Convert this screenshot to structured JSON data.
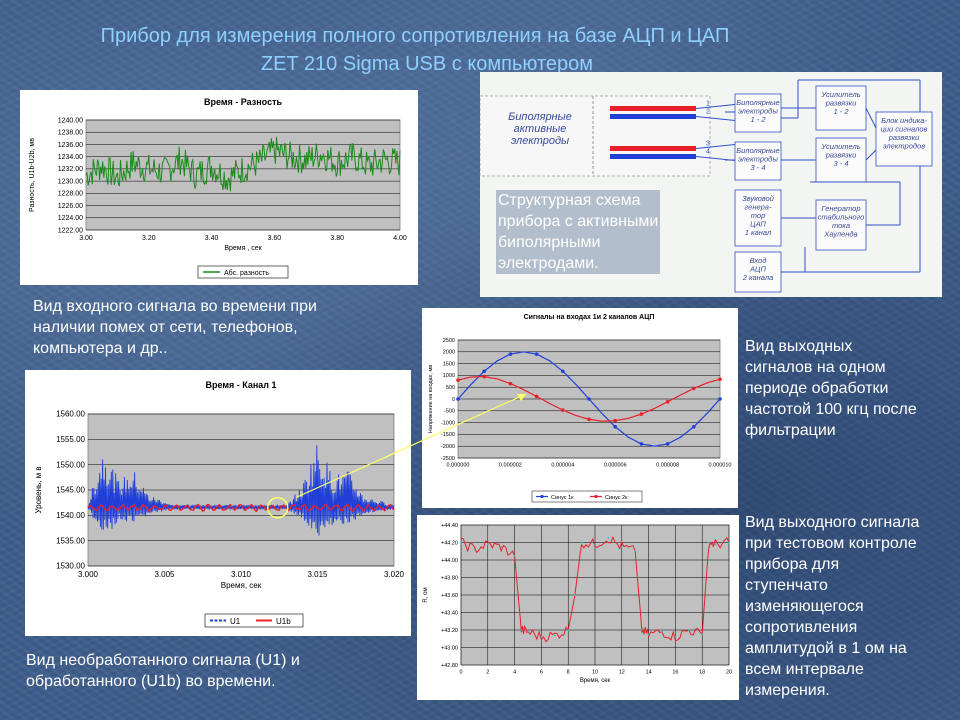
{
  "title": {
    "line1": "Прибор для измерения полного сопротивления на базе   АЦП  и  ЦАП",
    "line2": "ZET  210 Sigma USB с компьютером"
  },
  "captions": {
    "diagram": [
      "Структурная схема",
      "прибора с активными",
      "биполярными",
      "электродами."
    ],
    "input_signal": [
      "Вид входного сигнала во времени при",
      "наличии помех от сети, телефонов,",
      "компьютера и др.."
    ],
    "output_signals": [
      "Вид выходных",
      "сигналов на одном",
      "периоде обработки",
      "частотой 100 кгц после",
      "фильтрации"
    ],
    "raw_signal": [
      "Вид  необработанного сигнала (U1) и",
      "обработанного (U1b) во времени."
    ],
    "step_signal": [
      "Вид выходного сигнала",
      "при тестовом контроле",
      "прибора для",
      "ступенчато",
      "изменяющегося",
      "сопротивления",
      "амплитудой в 1 ом на",
      "всем интервале",
      "измерения."
    ]
  },
  "schema": {
    "electrodes_label": [
      "Биполярные",
      "активные",
      "электроды"
    ],
    "wire_numbers": [
      "1",
      "2",
      "3",
      "4"
    ],
    "blocks": {
      "electr_12": [
        "Биполярные",
        "электроды",
        "1 - 2"
      ],
      "electr_34": [
        "Биполярные",
        "электроды",
        "3 - 4"
      ],
      "amp_12": [
        "Усилитель",
        "развязки",
        "1 - 2"
      ],
      "amp_34": [
        "Усилитель",
        "развязки",
        "3 - 4"
      ],
      "display": [
        "Блок индика-",
        "ции сигналов",
        "развязки",
        "электродов"
      ],
      "dac": [
        "Звуковой",
        "генера-",
        "тор",
        "ЦАП",
        "1 канал"
      ],
      "generator": [
        "Генератор",
        "стабильного",
        "тока",
        "Хауленда"
      ],
      "adc": [
        "Вход",
        "АЦП",
        "2 канала"
      ]
    },
    "colors": {
      "red": "#e8202a",
      "blue": "#1f3fd8",
      "line": "#3050c8"
    }
  },
  "chart_data": [
    {
      "id": "chart-difference",
      "type": "line",
      "title": "Время - Разность",
      "xlabel": "Время , сек",
      "ylabel": "Разность, U1b-U2b, мв",
      "xlim": [
        3.0,
        4.0
      ],
      "ylim": [
        1222.0,
        1240.0
      ],
      "x_ticks": [
        "3.00",
        "3.20",
        "3.40",
        "3.60",
        "3.80",
        "4.00"
      ],
      "y_ticks": [
        "1222.00",
        "1224.00",
        "1226.00",
        "1228.00",
        "1230.00",
        "1232.00",
        "1234.00",
        "1236.00",
        "1238.00",
        "1240.00"
      ],
      "series": [
        {
          "name": "Абс. разность",
          "color": "#1d8a1d",
          "x": [
            3.0,
            3.05,
            3.1,
            3.15,
            3.2,
            3.25,
            3.3,
            3.35,
            3.4,
            3.45,
            3.5,
            3.55,
            3.6,
            3.65,
            3.7,
            3.75,
            3.8,
            3.85,
            3.9,
            3.95,
            4.0
          ],
          "y": [
            1231.0,
            1232.5,
            1230.5,
            1233.0,
            1232.0,
            1231.5,
            1233.5,
            1231.0,
            1232.5,
            1230.5,
            1232.0,
            1233.0,
            1235.0,
            1234.0,
            1233.5,
            1234.5,
            1233.0,
            1234.0,
            1232.5,
            1233.5,
            1233.0
          ]
        }
      ],
      "legend": "bottom",
      "grid": true
    },
    {
      "id": "chart-channels",
      "type": "line",
      "title": "Сигналы на входах 1и 2 каналов АЦП",
      "xlabel": "",
      "ylabel": "Напряжение на входах, мв",
      "xlim": [
        0.0,
        1e-05
      ],
      "ylim": [
        -2500,
        2500
      ],
      "x_ticks": [
        "0.000000",
        "0.000002",
        "0.000004",
        "0.000006",
        "0.000008",
        "0.000010"
      ],
      "y_ticks": [
        "2500",
        "2000",
        "1500",
        "1000",
        "500",
        "0",
        "-500",
        "-1000",
        "-1500",
        "-2000",
        "-2500"
      ],
      "series": [
        {
          "name": "Синус 1к",
          "color": "#1f3fd8",
          "x": [
            0,
            5e-07,
            1e-06,
            1.5e-06,
            2e-06,
            2.5e-06,
            3e-06,
            3.5e-06,
            4e-06,
            4.5e-06,
            5e-06,
            5.5e-06,
            6e-06,
            6.5e-06,
            7e-06,
            7.5e-06,
            8e-06,
            8.5e-06,
            9e-06,
            9.5e-06,
            1e-05
          ],
          "y": [
            0,
            618,
            1176,
            1618,
            1902,
            2000,
            1902,
            1618,
            1176,
            618,
            0,
            -618,
            -1176,
            -1618,
            -1902,
            -2000,
            -1902,
            -1618,
            -1176,
            -618,
            0
          ]
        },
        {
          "name": "Синус 2к",
          "color": "#e8202a",
          "x": [
            0,
            5e-07,
            1e-06,
            1.5e-06,
            2e-06,
            2.5e-06,
            3e-06,
            3.5e-06,
            4e-06,
            4.5e-06,
            5e-06,
            5.5e-06,
            6e-06,
            6.5e-06,
            7e-06,
            7.5e-06,
            8e-06,
            8.5e-06,
            9e-06,
            9.5e-06,
            1e-05
          ],
          "y": [
            800,
            930,
            950,
            850,
            650,
            400,
            110,
            -190,
            -470,
            -700,
            -860,
            -940,
            -920,
            -820,
            -640,
            -400,
            -120,
            170,
            450,
            680,
            840
          ]
        }
      ],
      "legend": "bottom",
      "grid": true
    },
    {
      "id": "chart-channel1",
      "type": "line",
      "title": "Время - Канал 1",
      "xlabel": "Время, сек",
      "ylabel": "Уровень, м в",
      "xlim": [
        3.0,
        3.02
      ],
      "ylim": [
        1530.0,
        1560.0
      ],
      "x_ticks": [
        "3.000",
        "3.005",
        "3.010",
        "3.015",
        "3.020"
      ],
      "y_ticks": [
        "1530.00",
        "1535.00",
        "1540.00",
        "1545.00",
        "1550.00",
        "1555.00",
        "1560.00"
      ],
      "series": [
        {
          "name": "U1",
          "color": "#1f3fd8",
          "x": [
            3.0,
            3.001,
            3.002,
            3.003,
            3.004,
            3.005,
            3.006,
            3.007,
            3.008,
            3.009,
            3.01,
            3.011,
            3.012,
            3.013,
            3.014,
            3.015,
            3.016,
            3.017,
            3.018,
            3.019,
            3.02
          ],
          "y": [
            1542,
            1554,
            1547,
            1549,
            1544,
            1543,
            1541,
            1539,
            1542,
            1541,
            1540,
            1541,
            1542,
            1542,
            1546,
            1555,
            1548,
            1549,
            1544,
            1543,
            1542
          ]
        },
        {
          "name": "U1b",
          "color": "#e8202a",
          "x": [
            3.0,
            3.002,
            3.004,
            3.006,
            3.008,
            3.01,
            3.012,
            3.014,
            3.016,
            3.018,
            3.02
          ],
          "y": [
            1541.5,
            1542,
            1541.5,
            1541,
            1541.5,
            1541,
            1541.5,
            1541.5,
            1542,
            1541.5,
            1542
          ]
        }
      ],
      "legend": "bottom",
      "grid": true
    },
    {
      "id": "chart-step",
      "type": "line",
      "title": "",
      "xlabel": "Время, сек",
      "ylabel": "R, ом",
      "xlim": [
        0,
        20
      ],
      "ylim": [
        42.8,
        44.4
      ],
      "x_ticks": [
        "0",
        "2",
        "4",
        "6",
        "8",
        "10",
        "12",
        "14",
        "16",
        "18",
        "20"
      ],
      "y_ticks": [
        "+42.80",
        "+43.00",
        "+43.20",
        "+43.40",
        "+43.60",
        "+43.80",
        "+44.00",
        "+44.20",
        "+44.40"
      ],
      "series": [
        {
          "name": "R",
          "color": "#e8202a",
          "x": [
            0,
            1,
            2,
            3,
            4,
            4.5,
            5,
            6,
            7,
            8,
            8.5,
            9,
            10,
            11,
            12,
            13,
            13.5,
            14,
            15,
            16,
            17,
            18,
            18.5,
            19,
            20
          ],
          "y": [
            44.2,
            44.12,
            44.18,
            44.15,
            44.05,
            43.2,
            43.18,
            43.12,
            43.14,
            43.2,
            43.6,
            44.2,
            44.18,
            44.25,
            44.15,
            44.1,
            43.2,
            43.15,
            43.18,
            43.12,
            43.2,
            43.15,
            44.2,
            44.18,
            44.2
          ]
        }
      ],
      "grid": true
    }
  ],
  "arrow_color": "#ffff66"
}
